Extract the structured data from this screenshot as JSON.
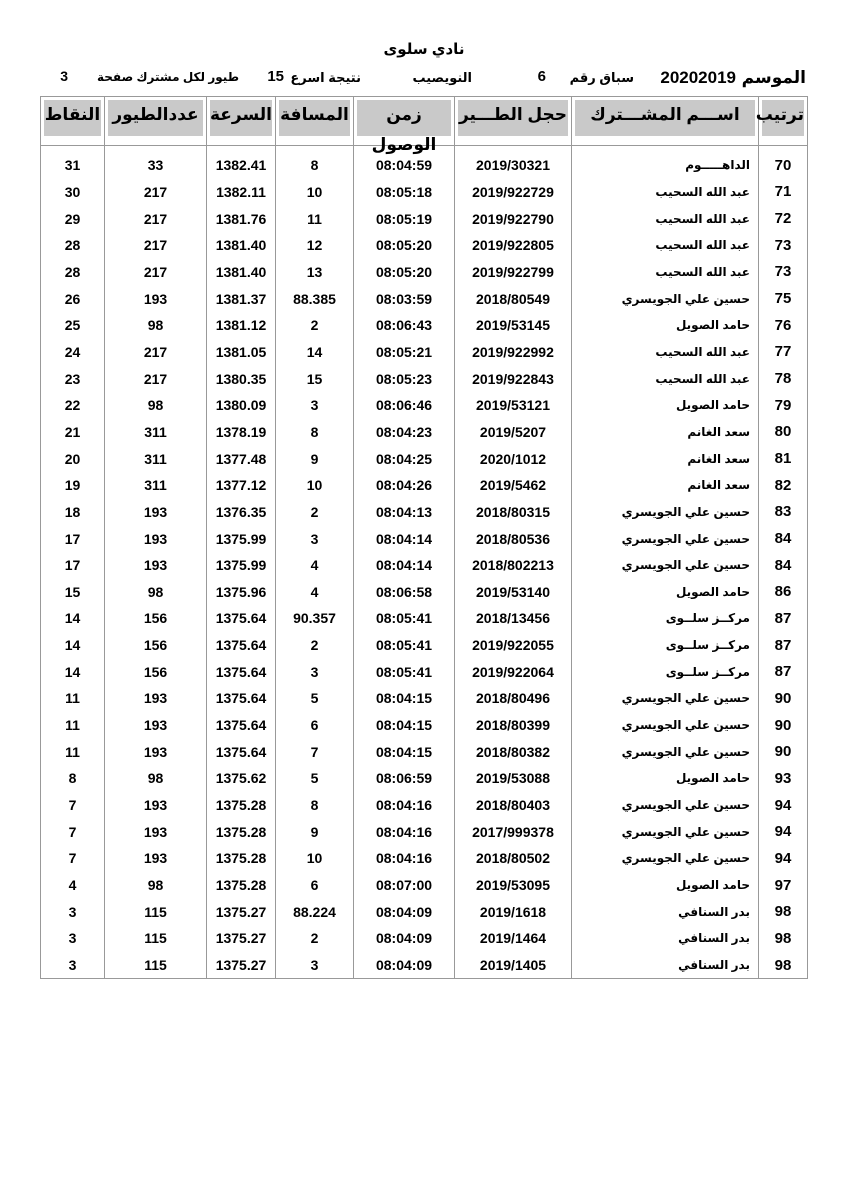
{
  "header": {
    "club": "نادي سلوى",
    "season_label": "الموسم",
    "season": "20202019",
    "race_label": "سباق رقم",
    "race_no": "6",
    "location": "النويصيب",
    "fastest_label": "نتيجة اسرع",
    "fastest": "15",
    "per_page_label": "طيور لكل مشترك صفحة",
    "page": "3"
  },
  "columns": [
    "ترتيب",
    "اســـم المشـــترك",
    "حجل الطـــير",
    "زمن الوصول",
    "المسافة",
    "السرعة",
    "عددالطيور",
    "النقاط"
  ],
  "rows": [
    [
      "70",
      "الداهـــــوم",
      "2019/30321",
      "08:04:59",
      "8",
      "1382.41",
      "33",
      "31"
    ],
    [
      "71",
      "عبد الله السحيب",
      "2019/922729",
      "08:05:18",
      "10",
      "1382.11",
      "217",
      "30"
    ],
    [
      "72",
      "عبد الله السحيب",
      "2019/922790",
      "08:05:19",
      "11",
      "1381.76",
      "217",
      "29"
    ],
    [
      "73",
      "عبد الله السحيب",
      "2019/922805",
      "08:05:20",
      "12",
      "1381.40",
      "217",
      "28"
    ],
    [
      "73",
      "عبد الله السحيب",
      "2019/922799",
      "08:05:20",
      "13",
      "1381.40",
      "217",
      "28"
    ],
    [
      "75",
      "حسين علي الجويسري",
      "2018/80549",
      "08:03:59",
      "88.385",
      "1381.37",
      "193",
      "26"
    ],
    [
      "76",
      "حامد الصويل",
      "2019/53145",
      "08:06:43",
      "2",
      "1381.12",
      "98",
      "25"
    ],
    [
      "77",
      "عبد الله السحيب",
      "2019/922992",
      "08:05:21",
      "14",
      "1381.05",
      "217",
      "24"
    ],
    [
      "78",
      "عبد الله السحيب",
      "2019/922843",
      "08:05:23",
      "15",
      "1380.35",
      "217",
      "23"
    ],
    [
      "79",
      "حامد الصويل",
      "2019/53121",
      "08:06:46",
      "3",
      "1380.09",
      "98",
      "22"
    ],
    [
      "80",
      "سعد الغانم",
      "2019/5207",
      "08:04:23",
      "8",
      "1378.19",
      "311",
      "21"
    ],
    [
      "81",
      "سعد الغانم",
      "2020/1012",
      "08:04:25",
      "9",
      "1377.48",
      "311",
      "20"
    ],
    [
      "82",
      "سعد الغانم",
      "2019/5462",
      "08:04:26",
      "10",
      "1377.12",
      "311",
      "19"
    ],
    [
      "83",
      "حسين علي الجويسري",
      "2018/80315",
      "08:04:13",
      "2",
      "1376.35",
      "193",
      "18"
    ],
    [
      "84",
      "حسين علي الجويسري",
      "2018/80536",
      "08:04:14",
      "3",
      "1375.99",
      "193",
      "17"
    ],
    [
      "84",
      "حسين علي الجويسري",
      "2018/802213",
      "08:04:14",
      "4",
      "1375.99",
      "193",
      "17"
    ],
    [
      "86",
      "حامد الصويل",
      "2019/53140",
      "08:06:58",
      "4",
      "1375.96",
      "98",
      "15"
    ],
    [
      "87",
      "مركــز سلــوى",
      "2018/13456",
      "08:05:41",
      "90.357",
      "1375.64",
      "156",
      "14"
    ],
    [
      "87",
      "مركــز سلــوى",
      "2019/922055",
      "08:05:41",
      "2",
      "1375.64",
      "156",
      "14"
    ],
    [
      "87",
      "مركــز سلــوى",
      "2019/922064",
      "08:05:41",
      "3",
      "1375.64",
      "156",
      "14"
    ],
    [
      "90",
      "حسين علي الجويسري",
      "2018/80496",
      "08:04:15",
      "5",
      "1375.64",
      "193",
      "11"
    ],
    [
      "90",
      "حسين علي الجويسري",
      "2018/80399",
      "08:04:15",
      "6",
      "1375.64",
      "193",
      "11"
    ],
    [
      "90",
      "حسين علي الجويسري",
      "2018/80382",
      "08:04:15",
      "7",
      "1375.64",
      "193",
      "11"
    ],
    [
      "93",
      "حامد الصويل",
      "2019/53088",
      "08:06:59",
      "5",
      "1375.62",
      "98",
      "8"
    ],
    [
      "94",
      "حسين علي الجويسري",
      "2018/80403",
      "08:04:16",
      "8",
      "1375.28",
      "193",
      "7"
    ],
    [
      "94",
      "حسين علي الجويسري",
      "2017/999378",
      "08:04:16",
      "9",
      "1375.28",
      "193",
      "7"
    ],
    [
      "94",
      "حسين علي الجويسري",
      "2018/80502",
      "08:04:16",
      "10",
      "1375.28",
      "193",
      "7"
    ],
    [
      "97",
      "حامد الصويل",
      "2019/53095",
      "08:07:00",
      "6",
      "1375.28",
      "98",
      "4"
    ],
    [
      "98",
      "بدر السنافي",
      "2019/1618",
      "08:04:09",
      "88.224",
      "1375.27",
      "115",
      "3"
    ],
    [
      "98",
      "بدر السنافي",
      "2019/1464",
      "08:04:09",
      "2",
      "1375.27",
      "115",
      "3"
    ],
    [
      "98",
      "بدر السنافي",
      "2019/1405",
      "08:04:09",
      "3",
      "1375.27",
      "115",
      "3"
    ]
  ]
}
